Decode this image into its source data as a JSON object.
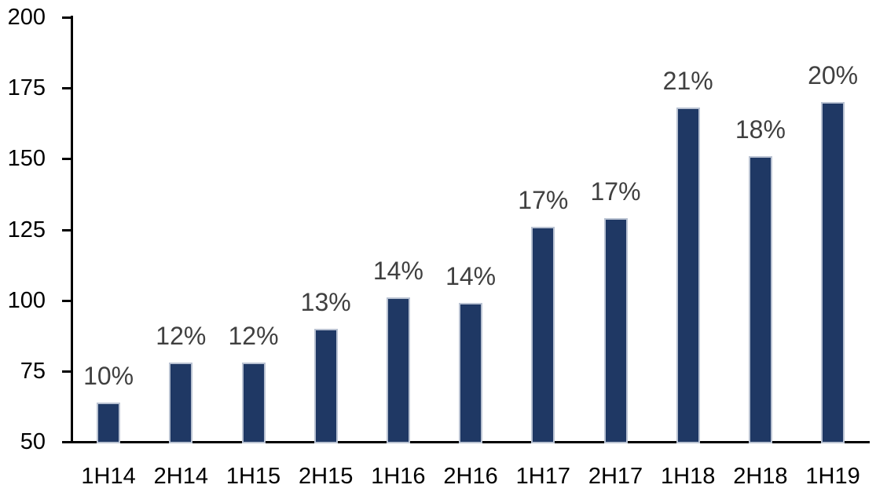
{
  "chart_data": {
    "type": "bar",
    "title": "",
    "xlabel": "",
    "ylabel": "",
    "categories": [
      "1H14",
      "2H14",
      "1H15",
      "2H15",
      "1H16",
      "2H16",
      "1H17",
      "2H17",
      "1H18",
      "2H18",
      "1H19"
    ],
    "values": [
      64,
      78,
      78,
      90,
      101,
      99,
      126,
      129,
      168,
      151,
      170
    ],
    "bar_labels": [
      "10%",
      "12%",
      "12%",
      "13%",
      "14%",
      "14%",
      "17%",
      "17%",
      "21%",
      "18%",
      "20%"
    ],
    "ylim": [
      50,
      200
    ],
    "yticks": [
      50,
      75,
      100,
      125,
      150,
      175,
      200
    ],
    "grid": false,
    "legend": false,
    "colors": {
      "bar_fill": "#1f3864",
      "bar_border": "#b9c2d2",
      "bar_label_text": "#404040",
      "axis_text": "#000000",
      "axis_line": "#000000",
      "background": "#ffffff"
    }
  }
}
